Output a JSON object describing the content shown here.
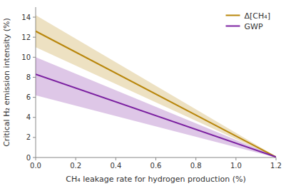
{
  "chart_data": {
    "type": "line",
    "xlabel": "CH₄ leakage rate for hydrogen production (%)",
    "ylabel": "Critical H₂ emission intensity (%)",
    "x": [
      0.0,
      1.2
    ],
    "series": [
      {
        "name": "Δ[CH₄]",
        "color": "#B8860B",
        "values": [
          12.6,
          0.05
        ],
        "upper": [
          14.2,
          0.1
        ],
        "lower": [
          11.0,
          0.0
        ]
      },
      {
        "name": "GWP",
        "color": "#7B20A0",
        "values": [
          8.3,
          0.05
        ],
        "upper": [
          10.0,
          0.1
        ],
        "lower": [
          6.2,
          0.0
        ]
      }
    ],
    "xlim": [
      0.0,
      1.2
    ],
    "ylim": [
      0.0,
      15.0
    ],
    "xticks": [
      {
        "value": 0.0,
        "label": "0.0"
      },
      0.2,
      0.4,
      0.6,
      0.8,
      {
        "value": 1.0,
        "label": "1.0"
      },
      1.2
    ],
    "yticks": [
      0,
      2,
      4,
      6,
      8,
      10,
      12,
      14
    ],
    "legend": "upper right"
  }
}
